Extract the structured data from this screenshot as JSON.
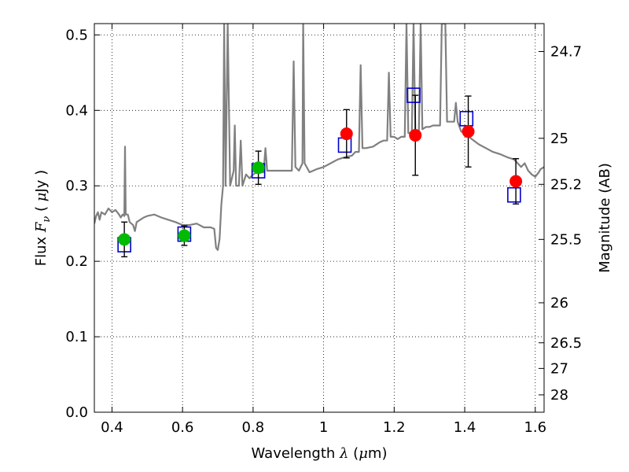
{
  "chart_data": {
    "type": "scatter",
    "xlabel": {
      "pre": "Wavelength  ",
      "sym": "λ",
      "post": " (",
      "mu": "μ",
      "unit": "m)"
    },
    "ylabel": {
      "pre": "Flux  ",
      "sym": "F",
      "sub": "ν",
      "post": "  ( ",
      "mu": "μ",
      "unit": "Jy )"
    },
    "y2label": "Magnitude (AB)",
    "xlim": [
      0.35,
      1.625
    ],
    "ylim": [
      0.0,
      0.515
    ],
    "grid": true,
    "x_ticks": [
      {
        "value": 0.4,
        "label": "0.4"
      },
      {
        "value": 0.6,
        "label": "0.6"
      },
      {
        "value": 0.8,
        "label": "0.8"
      },
      {
        "value": 1.0,
        "label": "1"
      },
      {
        "value": 1.2,
        "label": "1.2"
      },
      {
        "value": 1.4,
        "label": "1.4"
      },
      {
        "value": 1.6,
        "label": "1.6"
      }
    ],
    "y_ticks": [
      {
        "value": 0.0,
        "label": "0.0"
      },
      {
        "value": 0.1,
        "label": "0.1"
      },
      {
        "value": 0.2,
        "label": "0.2"
      },
      {
        "value": 0.3,
        "label": "0.3"
      },
      {
        "value": 0.4,
        "label": "0.4"
      },
      {
        "value": 0.5,
        "label": "0.5"
      }
    ],
    "y2_ticks": [
      {
        "flux": 0.478,
        "label": "24.7"
      },
      {
        "flux": 0.363,
        "label": "25"
      },
      {
        "flux": 0.302,
        "label": "25.2"
      },
      {
        "flux": 0.229,
        "label": "25.5"
      },
      {
        "flux": 0.145,
        "label": "26"
      },
      {
        "flux": 0.092,
        "label": "26.5"
      },
      {
        "flux": 0.058,
        "label": "27"
      },
      {
        "flux": 0.023,
        "label": "28"
      }
    ],
    "model_spectrum": {
      "color": "#808080",
      "points": [
        [
          0.35,
          0.25
        ],
        [
          0.355,
          0.26
        ],
        [
          0.36,
          0.265
        ],
        [
          0.365,
          0.255
        ],
        [
          0.37,
          0.265
        ],
        [
          0.38,
          0.262
        ],
        [
          0.39,
          0.27
        ],
        [
          0.4,
          0.265
        ],
        [
          0.41,
          0.268
        ],
        [
          0.42,
          0.262
        ],
        [
          0.425,
          0.258
        ],
        [
          0.43,
          0.262
        ],
        [
          0.435,
          0.26
        ],
        [
          0.437,
          0.352
        ],
        [
          0.439,
          0.262
        ],
        [
          0.445,
          0.262
        ],
        [
          0.45,
          0.252
        ],
        [
          0.46,
          0.248
        ],
        [
          0.465,
          0.24
        ],
        [
          0.47,
          0.252
        ],
        [
          0.48,
          0.255
        ],
        [
          0.49,
          0.258
        ],
        [
          0.5,
          0.26
        ],
        [
          0.52,
          0.262
        ],
        [
          0.54,
          0.258
        ],
        [
          0.56,
          0.255
        ],
        [
          0.58,
          0.252
        ],
        [
          0.6,
          0.248
        ],
        [
          0.62,
          0.248
        ],
        [
          0.64,
          0.25
        ],
        [
          0.66,
          0.245
        ],
        [
          0.68,
          0.245
        ],
        [
          0.69,
          0.243
        ],
        [
          0.695,
          0.218
        ],
        [
          0.7,
          0.215
        ],
        [
          0.705,
          0.23
        ],
        [
          0.71,
          0.275
        ],
        [
          0.715,
          0.3
        ],
        [
          0.718,
          0.515
        ],
        [
          0.722,
          0.3
        ],
        [
          0.728,
          0.515
        ],
        [
          0.735,
          0.3
        ],
        [
          0.745,
          0.32
        ],
        [
          0.748,
          0.38
        ],
        [
          0.752,
          0.3
        ],
        [
          0.76,
          0.3
        ],
        [
          0.765,
          0.36
        ],
        [
          0.77,
          0.3
        ],
        [
          0.78,
          0.315
        ],
        [
          0.79,
          0.31
        ],
        [
          0.8,
          0.315
        ],
        [
          0.81,
          0.318
        ],
        [
          0.82,
          0.318
        ],
        [
          0.83,
          0.318
        ],
        [
          0.835,
          0.35
        ],
        [
          0.84,
          0.32
        ],
        [
          0.85,
          0.32
        ],
        [
          0.87,
          0.32
        ],
        [
          0.89,
          0.32
        ],
        [
          0.91,
          0.32
        ],
        [
          0.915,
          0.465
        ],
        [
          0.92,
          0.325
        ],
        [
          0.93,
          0.32
        ],
        [
          0.94,
          0.33
        ],
        [
          0.942,
          0.515
        ],
        [
          0.946,
          0.33
        ],
        [
          0.96,
          0.318
        ],
        [
          0.98,
          0.322
        ],
        [
          1.0,
          0.325
        ],
        [
          1.02,
          0.33
        ],
        [
          1.04,
          0.335
        ],
        [
          1.06,
          0.338
        ],
        [
          1.08,
          0.34
        ],
        [
          1.09,
          0.345
        ],
        [
          1.1,
          0.345
        ],
        [
          1.105,
          0.46
        ],
        [
          1.11,
          0.35
        ],
        [
          1.12,
          0.35
        ],
        [
          1.14,
          0.352
        ],
        [
          1.16,
          0.358
        ],
        [
          1.17,
          0.36
        ],
        [
          1.18,
          0.36
        ],
        [
          1.185,
          0.45
        ],
        [
          1.19,
          0.365
        ],
        [
          1.2,
          0.365
        ],
        [
          1.21,
          0.362
        ],
        [
          1.22,
          0.365
        ],
        [
          1.23,
          0.365
        ],
        [
          1.235,
          0.515
        ],
        [
          1.24,
          0.37
        ],
        [
          1.25,
          0.37
        ],
        [
          1.255,
          0.515
        ],
        [
          1.26,
          0.37
        ],
        [
          1.27,
          0.37
        ],
        [
          1.275,
          0.515
        ],
        [
          1.28,
          0.375
        ],
        [
          1.29,
          0.378
        ],
        [
          1.3,
          0.378
        ],
        [
          1.31,
          0.38
        ],
        [
          1.32,
          0.38
        ],
        [
          1.33,
          0.38
        ],
        [
          1.335,
          0.515
        ],
        [
          1.345,
          0.515
        ],
        [
          1.35,
          0.385
        ],
        [
          1.36,
          0.385
        ],
        [
          1.37,
          0.385
        ],
        [
          1.375,
          0.41
        ],
        [
          1.38,
          0.385
        ],
        [
          1.39,
          0.372
        ],
        [
          1.4,
          0.37
        ],
        [
          1.42,
          0.362
        ],
        [
          1.44,
          0.355
        ],
        [
          1.46,
          0.35
        ],
        [
          1.48,
          0.345
        ],
        [
          1.5,
          0.342
        ],
        [
          1.52,
          0.338
        ],
        [
          1.54,
          0.335
        ],
        [
          1.56,
          0.325
        ],
        [
          1.57,
          0.33
        ],
        [
          1.58,
          0.32
        ],
        [
          1.59,
          0.315
        ],
        [
          1.6,
          0.312
        ],
        [
          1.605,
          0.315
        ],
        [
          1.61,
          0.318
        ],
        [
          1.615,
          0.322
        ],
        [
          1.625,
          0.325
        ]
      ]
    },
    "model_points": {
      "marker": "square",
      "color": "#0000cc",
      "points": [
        {
          "x": 0.435,
          "y": 0.222
        },
        {
          "x": 0.605,
          "y": 0.236
        },
        {
          "x": 0.815,
          "y": 0.32
        },
        {
          "x": 1.06,
          "y": 0.354
        },
        {
          "x": 1.255,
          "y": 0.42
        },
        {
          "x": 1.405,
          "y": 0.389
        },
        {
          "x": 1.54,
          "y": 0.288
        }
      ]
    },
    "series": [
      {
        "marker": "circle",
        "color": "#00bb00",
        "points": [
          {
            "x": 0.435,
            "y": 0.229,
            "err": 0.023
          },
          {
            "x": 0.605,
            "y": 0.234,
            "err": 0.013
          },
          {
            "x": 0.815,
            "y": 0.324,
            "err": 0.022
          }
        ]
      },
      {
        "marker": "circle",
        "color": "#ff0000",
        "points": [
          {
            "x": 1.065,
            "y": 0.369,
            "err": 0.032
          },
          {
            "x": 1.26,
            "y": 0.367,
            "err": 0.053
          },
          {
            "x": 1.41,
            "y": 0.372,
            "err": 0.047
          },
          {
            "x": 1.545,
            "y": 0.306,
            "err": 0.03
          }
        ]
      }
    ]
  }
}
